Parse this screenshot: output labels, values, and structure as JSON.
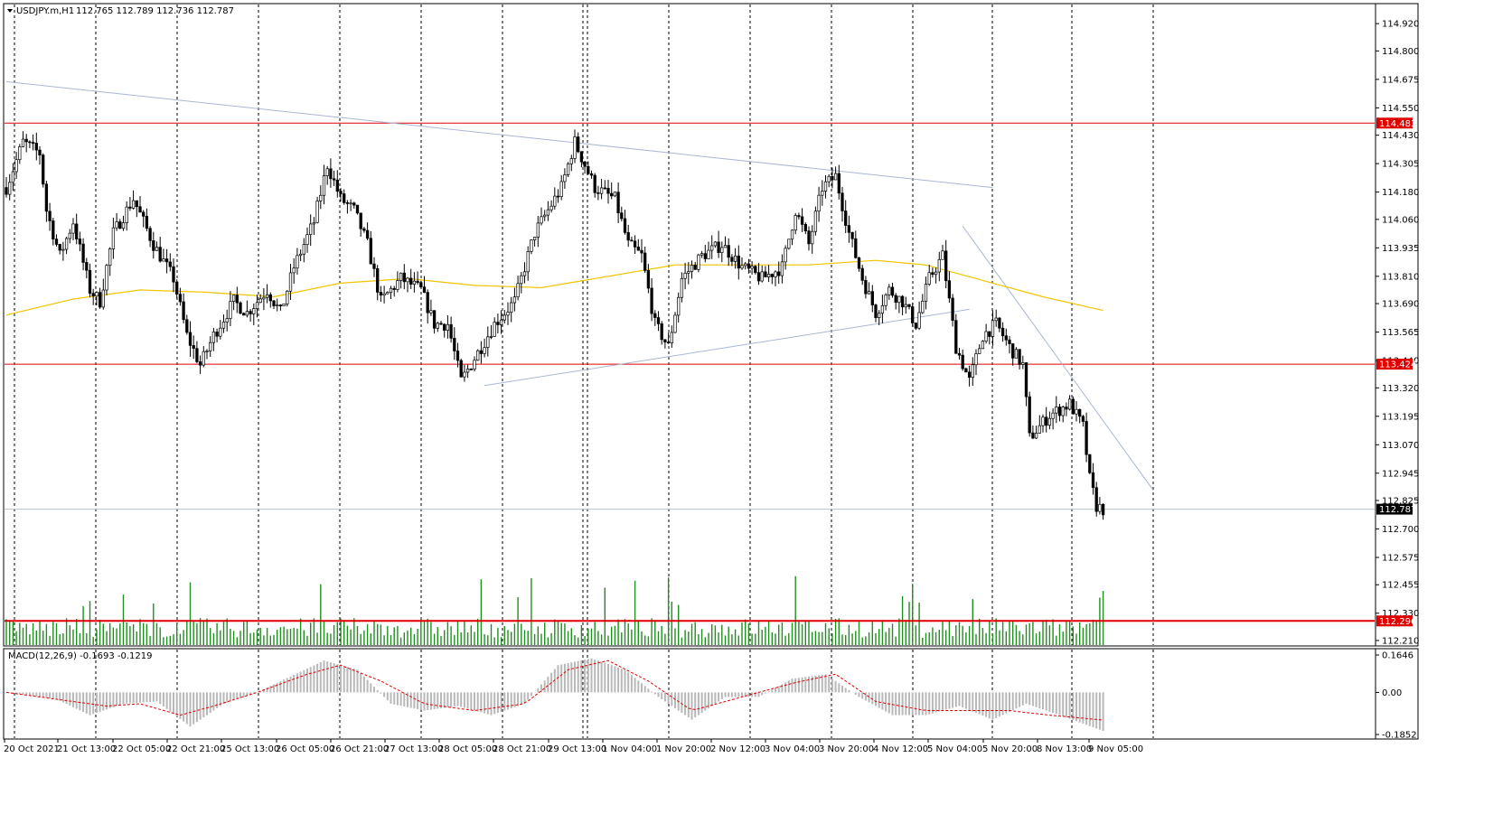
{
  "header": {
    "symbol": "USDJPY.m,H1",
    "ohlc": "112.765 112.789 112.736 112.787"
  },
  "macd": {
    "label": "MACD(12,26,9) -0.1693 -0.1219",
    "ticks": [
      "0.1646",
      "0.00",
      "-0.1852"
    ]
  },
  "colors": {
    "bull_candle": "#ffffff",
    "bear_candle": "#000000",
    "volume": "#1f8f1f",
    "ma": "#f2c400",
    "level_line": "#e00000",
    "trendline": "#a9b7d4",
    "grid_vertical": "#000000",
    "price_tag_bg": "#e00000",
    "current_price_bg": "#000000"
  },
  "chart_data": {
    "type": "candlestick",
    "symbol": "USDJPY.m",
    "timeframe": "H1",
    "y_ticks": [
      114.92,
      114.8,
      114.675,
      114.55,
      114.43,
      114.305,
      114.18,
      114.06,
      113.935,
      113.81,
      113.69,
      113.565,
      113.44,
      113.32,
      113.195,
      113.07,
      112.945,
      112.825,
      112.7,
      112.575,
      112.455,
      112.33,
      112.21
    ],
    "ylim": [
      112.19,
      115.0
    ],
    "x_labels": [
      "20 Oct 2021",
      "21 Oct 13:00",
      "22 Oct 05:00",
      "22 Oct 21:00",
      "25 Oct 13:00",
      "26 Oct 05:00",
      "26 Oct 21:00",
      "27 Oct 13:00",
      "28 Oct 05:00",
      "28 Oct 21:00",
      "29 Oct 13:00",
      "1 Nov 04:00",
      "1 Nov 20:00",
      "2 Nov 12:00",
      "3 Nov 04:00",
      "3 Nov 20:00",
      "4 Nov 12:00",
      "5 Nov 04:00",
      "5 Nov 20:00",
      "8 Nov 13:00",
      "9 Nov 05:00"
    ],
    "horizontal_levels": [
      {
        "price": 114.483,
        "label": "114.483"
      },
      {
        "price": 113.424,
        "label": "113.424"
      },
      {
        "price": 112.296,
        "label": "112.296"
      }
    ],
    "current_price": {
      "price": 112.787,
      "label": "112.787"
    },
    "price_path": [
      [
        0,
        114.2
      ],
      [
        5,
        114.4
      ],
      [
        10,
        114.35
      ],
      [
        12,
        114.1
      ],
      [
        16,
        113.9
      ],
      [
        20,
        114.05
      ],
      [
        25,
        113.75
      ],
      [
        28,
        113.7
      ],
      [
        32,
        114.0
      ],
      [
        38,
        114.15
      ],
      [
        44,
        113.95
      ],
      [
        50,
        113.8
      ],
      [
        54,
        113.55
      ],
      [
        58,
        113.42
      ],
      [
        62,
        113.55
      ],
      [
        68,
        113.7
      ],
      [
        72,
        113.65
      ],
      [
        78,
        113.75
      ],
      [
        82,
        113.65
      ],
      [
        86,
        113.85
      ],
      [
        92,
        114.05
      ],
      [
        96,
        114.3
      ],
      [
        100,
        114.15
      ],
      [
        104,
        114.1
      ],
      [
        108,
        113.95
      ],
      [
        112,
        113.7
      ],
      [
        118,
        113.8
      ],
      [
        124,
        113.75
      ],
      [
        128,
        113.6
      ],
      [
        132,
        113.6
      ],
      [
        136,
        113.35
      ],
      [
        140,
        113.45
      ],
      [
        146,
        113.6
      ],
      [
        152,
        113.7
      ],
      [
        158,
        114.0
      ],
      [
        162,
        114.1
      ],
      [
        166,
        114.2
      ],
      [
        170,
        114.4
      ],
      [
        176,
        114.2
      ],
      [
        182,
        114.15
      ],
      [
        186,
        113.95
      ],
      [
        190,
        113.9
      ],
      [
        194,
        113.6
      ],
      [
        198,
        113.5
      ],
      [
        202,
        113.8
      ],
      [
        208,
        113.9
      ],
      [
        214,
        113.95
      ],
      [
        220,
        113.85
      ],
      [
        226,
        113.8
      ],
      [
        232,
        113.85
      ],
      [
        236,
        114.1
      ],
      [
        240,
        113.95
      ],
      [
        244,
        114.2
      ],
      [
        248,
        114.25
      ],
      [
        252,
        114.0
      ],
      [
        256,
        113.8
      ],
      [
        260,
        113.65
      ],
      [
        264,
        113.75
      ],
      [
        268,
        113.7
      ],
      [
        272,
        113.6
      ],
      [
        276,
        113.8
      ],
      [
        280,
        113.9
      ],
      [
        284,
        113.5
      ],
      [
        288,
        113.35
      ],
      [
        292,
        113.55
      ],
      [
        296,
        113.6
      ],
      [
        300,
        113.5
      ],
      [
        304,
        113.42
      ],
      [
        306,
        113.1
      ],
      [
        312,
        113.2
      ],
      [
        318,
        113.25
      ],
      [
        322,
        113.15
      ],
      [
        324,
        112.92
      ],
      [
        326,
        112.8
      ],
      [
        328,
        112.787
      ]
    ],
    "ma_path": [
      [
        0,
        113.64
      ],
      [
        20,
        113.71
      ],
      [
        40,
        113.75
      ],
      [
        60,
        113.74
      ],
      [
        80,
        113.72
      ],
      [
        100,
        113.78
      ],
      [
        120,
        113.8
      ],
      [
        140,
        113.77
      ],
      [
        160,
        113.76
      ],
      [
        180,
        113.81
      ],
      [
        200,
        113.86
      ],
      [
        220,
        113.86
      ],
      [
        240,
        113.86
      ],
      [
        260,
        113.88
      ],
      [
        275,
        113.86
      ],
      [
        290,
        113.8
      ],
      [
        310,
        113.72
      ],
      [
        328,
        113.66
      ]
    ],
    "trendlines": [
      {
        "from": [
          0,
          114.665
        ],
        "to": [
          295,
          114.2
        ]
      },
      {
        "from": [
          143,
          113.33
        ],
        "to": [
          288,
          113.665
        ]
      },
      {
        "from": [
          286,
          114.03
        ],
        "to": [
          343,
          112.87
        ]
      }
    ],
    "vertical_grid_labels_at": [
      "21 Oct 13:00",
      "22 Oct 05:00",
      "22 Oct 21:00",
      "25 Oct 13:00",
      "26 Oct 05:00",
      "26 Oct 21:00",
      "27 Oct 13:00",
      "28 Oct 05:00",
      "28 Oct 21:00",
      "29 Oct 13:00",
      "1 Nov 04:00",
      "1 Nov 20:00",
      "2 Nov 12:00",
      "3 Nov 04:00",
      "3 Nov 20:00",
      "4 Nov 12:00",
      "5 Nov 04:00",
      "5 Nov 20:00",
      "8 Nov 13:00",
      "9 Nov 05:00"
    ],
    "volume_series": "per-bar tick volume shown as green histogram",
    "macd_indicator": {
      "fast": 12,
      "slow": 26,
      "signal": 9,
      "macd": -0.1693,
      "signal_value": -0.1219,
      "ylim": [
        -0.1852,
        0.1646
      ]
    },
    "macd_path": [
      [
        0,
        0.0
      ],
      [
        15,
        -0.03
      ],
      [
        25,
        -0.1
      ],
      [
        35,
        -0.05
      ],
      [
        45,
        -0.04
      ],
      [
        55,
        -0.15
      ],
      [
        65,
        -0.05
      ],
      [
        75,
        0.0
      ],
      [
        85,
        0.07
      ],
      [
        95,
        0.14
      ],
      [
        105,
        0.1
      ],
      [
        115,
        -0.05
      ],
      [
        125,
        -0.08
      ],
      [
        135,
        -0.06
      ],
      [
        145,
        -0.1
      ],
      [
        155,
        -0.05
      ],
      [
        165,
        0.12
      ],
      [
        175,
        0.15
      ],
      [
        185,
        0.1
      ],
      [
        195,
        -0.02
      ],
      [
        205,
        -0.12
      ],
      [
        215,
        -0.02
      ],
      [
        225,
        -0.02
      ],
      [
        235,
        0.06
      ],
      [
        245,
        0.08
      ],
      [
        255,
        -0.02
      ],
      [
        265,
        -0.1
      ],
      [
        275,
        -0.1
      ],
      [
        285,
        -0.06
      ],
      [
        295,
        -0.12
      ],
      [
        305,
        -0.05
      ],
      [
        315,
        -0.1
      ],
      [
        328,
        -0.1693
      ]
    ],
    "signal_path": [
      [
        0,
        0.0
      ],
      [
        20,
        -0.04
      ],
      [
        30,
        -0.06
      ],
      [
        40,
        -0.05
      ],
      [
        52,
        -0.1
      ],
      [
        62,
        -0.06
      ],
      [
        75,
        0.0
      ],
      [
        90,
        0.08
      ],
      [
        100,
        0.12
      ],
      [
        112,
        0.05
      ],
      [
        125,
        -0.05
      ],
      [
        140,
        -0.08
      ],
      [
        155,
        -0.05
      ],
      [
        168,
        0.1
      ],
      [
        180,
        0.14
      ],
      [
        192,
        0.05
      ],
      [
        205,
        -0.08
      ],
      [
        220,
        -0.02
      ],
      [
        235,
        0.04
      ],
      [
        248,
        0.08
      ],
      [
        260,
        -0.04
      ],
      [
        275,
        -0.08
      ],
      [
        290,
        -0.08
      ],
      [
        300,
        -0.08
      ],
      [
        312,
        -0.1
      ],
      [
        328,
        -0.1219
      ]
    ]
  }
}
